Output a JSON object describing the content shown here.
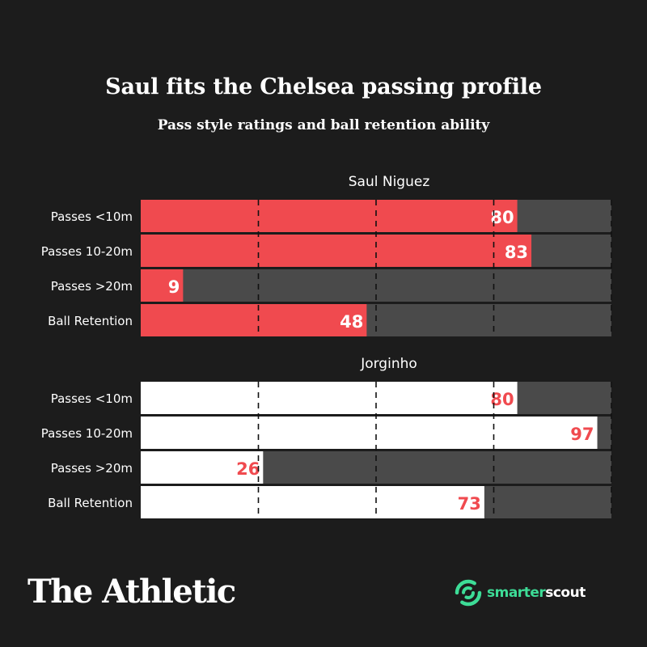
{
  "title": "Saul fits the Chelsea passing profile",
  "subtitle": "Pass style ratings and ball retention ability",
  "chart_data": {
    "type": "bar",
    "orientation": "horizontal",
    "xlim": [
      0,
      100
    ],
    "gridlines": [
      25,
      50,
      75,
      100
    ],
    "categories": [
      "Passes <10m",
      "Passes 10-20m",
      "Passes >20m",
      "Ball Retention"
    ],
    "panels": [
      {
        "name": "Saul Niguez",
        "values": [
          80,
          83,
          9,
          48
        ],
        "bar_color": "#f04a4f",
        "label_color": "#ffffff"
      },
      {
        "name": "Jorginho",
        "values": [
          80,
          97,
          26,
          73
        ],
        "bar_color": "#ffffff",
        "label_color": "#f04a4f"
      }
    ],
    "track_color": "#4a4a4a"
  },
  "footer": {
    "publisher": "The Athletic",
    "source_brand_a": "smarter",
    "source_brand_b": "scout",
    "source_icon": "smarterscout-logo-icon"
  }
}
